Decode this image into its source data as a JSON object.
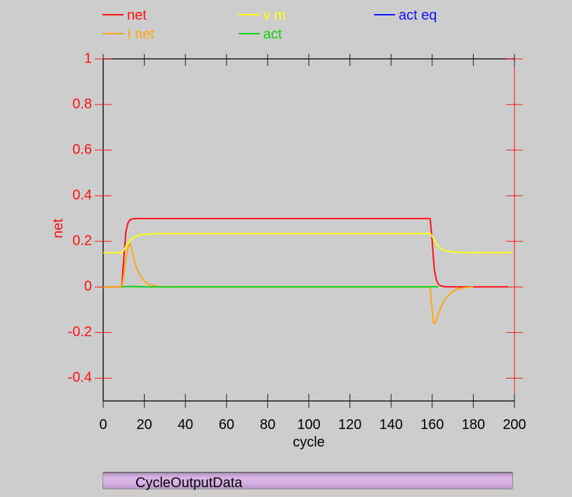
{
  "colors": {
    "axis": "#1a1a1a",
    "y_axis_color": "#ff1010",
    "x_tick_color": "#000000"
  },
  "chart_data": {
    "type": "line",
    "title": "",
    "xlabel": "cycle",
    "ylabel": "net",
    "xlim": [
      0,
      200
    ],
    "ylim": [
      -0.5,
      1
    ],
    "xticks": [
      "0",
      "20",
      "40",
      "60",
      "80",
      "100",
      "120",
      "140",
      "160",
      "180",
      "200"
    ],
    "yticks": [
      "1",
      "0.8",
      "0.6",
      "0.4",
      "0.2",
      "0",
      "-0.2",
      "-0.4"
    ],
    "legend_placement": "top",
    "series": [
      {
        "name": "net",
        "color": "#ff1010",
        "x": [
          0,
          9,
          10,
          11,
          12,
          13,
          14,
          15,
          16,
          20,
          159,
          160,
          161,
          162,
          163,
          164,
          166,
          170,
          175,
          180,
          197
        ],
        "y": [
          0,
          0,
          0.12,
          0.24,
          0.28,
          0.294,
          0.298,
          0.299,
          0.3,
          0.3,
          0.3,
          0.2,
          0.08,
          0.03,
          0.012,
          0.005,
          0.001,
          0,
          0,
          0,
          0
        ]
      },
      {
        "name": "v m",
        "color": "#ffff10",
        "x": [
          0,
          9,
          10,
          11,
          12,
          13,
          14,
          15,
          16,
          18,
          20,
          25,
          30,
          159,
          160,
          161,
          162,
          163,
          164,
          165,
          166,
          168,
          170,
          175,
          180,
          199
        ],
        "y": [
          0.15,
          0.15,
          0.16,
          0.178,
          0.192,
          0.203,
          0.211,
          0.217,
          0.222,
          0.228,
          0.231,
          0.233,
          0.234,
          0.234,
          0.222,
          0.205,
          0.19,
          0.179,
          0.171,
          0.165,
          0.161,
          0.156,
          0.153,
          0.151,
          0.15,
          0.15
        ]
      },
      {
        "name": "act eq",
        "color": "#1010ff",
        "x": [],
        "y": []
      },
      {
        "name": "I net",
        "color": "#ffa510",
        "x": [
          0,
          9,
          10,
          11,
          12,
          13,
          14,
          15,
          16,
          18,
          20,
          22,
          24,
          26,
          30,
          159,
          160,
          160.5,
          161,
          162,
          163,
          164,
          165,
          166,
          168,
          170,
          172,
          175,
          180
        ],
        "y": [
          0,
          0,
          0.05,
          0.12,
          0.17,
          0.19,
          0.16,
          0.12,
          0.09,
          0.05,
          0.025,
          0.012,
          0.006,
          0.003,
          0,
          0,
          -0.1,
          -0.15,
          -0.162,
          -0.145,
          -0.12,
          -0.095,
          -0.075,
          -0.058,
          -0.035,
          -0.02,
          -0.01,
          -0.004,
          0
        ]
      },
      {
        "name": "act",
        "color": "#10d010",
        "x": [
          9,
          10,
          12,
          15,
          18,
          21,
          159,
          160,
          161,
          162,
          163
        ],
        "y": [
          0,
          0.001,
          0.002,
          0.002,
          0.001,
          0,
          0,
          0.001,
          0.002,
          0.001,
          0
        ]
      }
    ]
  },
  "bottom_bar": {
    "label": "CycleOutputData"
  }
}
